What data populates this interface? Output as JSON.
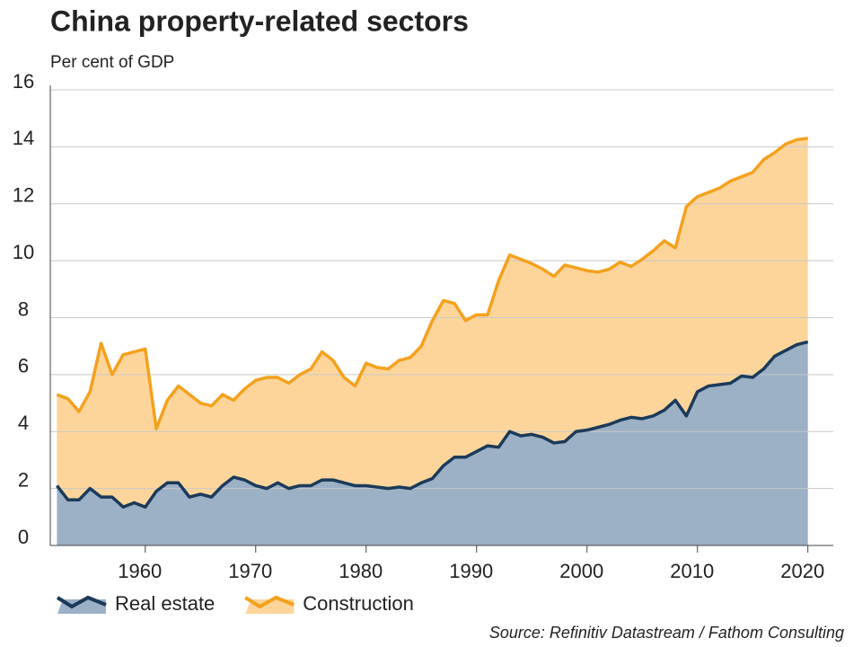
{
  "chart_data": {
    "type": "stacked_area",
    "title": "China property-related sectors",
    "subtitle": "Per cent of GDP",
    "source": "Source: Refinitiv Datastream / Fathom Consulting",
    "x": [
      1952,
      1953,
      1954,
      1955,
      1956,
      1957,
      1958,
      1959,
      1960,
      1961,
      1962,
      1963,
      1964,
      1965,
      1966,
      1967,
      1968,
      1969,
      1970,
      1971,
      1972,
      1973,
      1974,
      1975,
      1976,
      1977,
      1978,
      1979,
      1980,
      1981,
      1982,
      1983,
      1984,
      1985,
      1986,
      1987,
      1988,
      1989,
      1990,
      1991,
      1992,
      1993,
      1994,
      1995,
      1996,
      1997,
      1998,
      1999,
      2000,
      2001,
      2002,
      2003,
      2004,
      2005,
      2006,
      2007,
      2008,
      2009,
      2010,
      2011,
      2012,
      2013,
      2014,
      2015,
      2016,
      2017,
      2018,
      2019,
      2020
    ],
    "series": [
      {
        "name": "Real estate",
        "color": "#1b3a5a",
        "fill_color": "#9cb0c6",
        "values": [
          2.1,
          1.6,
          1.6,
          2.0,
          1.7,
          1.7,
          1.35,
          1.5,
          1.35,
          1.9,
          2.2,
          2.2,
          1.7,
          1.8,
          1.7,
          2.1,
          2.4,
          2.3,
          2.1,
          2.0,
          2.2,
          2.0,
          2.1,
          2.1,
          2.3,
          2.3,
          2.2,
          2.1,
          2.1,
          2.05,
          2.0,
          2.05,
          2.0,
          2.2,
          2.35,
          2.8,
          3.1,
          3.1,
          3.3,
          3.5,
          3.45,
          4.0,
          3.85,
          3.9,
          3.8,
          3.6,
          3.65,
          4.0,
          4.05,
          4.15,
          4.25,
          4.4,
          4.5,
          4.45,
          4.55,
          4.75,
          5.1,
          4.55,
          5.4,
          5.6,
          5.65,
          5.7,
          5.95,
          5.9,
          6.2,
          6.65,
          6.85,
          7.05,
          7.15
        ]
      },
      {
        "name": "Construction",
        "color": "#f4a11d",
        "fill_color": "#fdd59b",
        "values": [
          3.2,
          3.55,
          3.1,
          3.4,
          5.4,
          4.3,
          5.35,
          5.3,
          5.55,
          2.2,
          2.9,
          3.4,
          3.6,
          3.2,
          3.2,
          3.2,
          2.7,
          3.2,
          3.7,
          3.9,
          3.7,
          3.7,
          3.9,
          4.1,
          4.5,
          4.2,
          3.7,
          3.5,
          4.3,
          4.2,
          4.2,
          4.45,
          4.6,
          4.8,
          5.55,
          5.8,
          5.4,
          4.8,
          4.8,
          4.6,
          5.85,
          6.2,
          6.2,
          6.0,
          5.9,
          5.85,
          6.2,
          5.75,
          5.6,
          5.45,
          5.45,
          5.55,
          5.3,
          5.6,
          5.8,
          5.95,
          5.35,
          7.35,
          6.85,
          6.8,
          6.9,
          7.1,
          7.0,
          7.2,
          7.35,
          7.15,
          7.25,
          7.2,
          7.15
        ]
      }
    ],
    "xlim": [
      1951.4,
      2022.3
    ],
    "xticks": [
      1960,
      1970,
      1980,
      1990,
      2000,
      2010,
      2020
    ],
    "ylim": [
      0,
      16
    ],
    "yticks": [
      0,
      2,
      4,
      6,
      8,
      10,
      12,
      14,
      16
    ],
    "grid": true,
    "legend": "bottom-left"
  }
}
